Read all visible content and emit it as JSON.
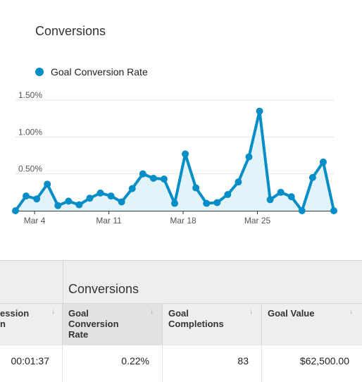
{
  "chart_title": "Conversions",
  "legend": {
    "label": "Goal Conversion Rate",
    "color": "#058dc7"
  },
  "chart_data": {
    "type": "area",
    "title": "Conversions",
    "series": [
      {
        "name": "Goal Conversion Rate",
        "color": "#058dc7",
        "values": [
          0.0,
          0.2,
          0.16,
          0.36,
          0.07,
          0.13,
          0.08,
          0.17,
          0.24,
          0.2,
          0.12,
          0.3,
          0.5,
          0.44,
          0.43,
          0.1,
          0.77,
          0.31,
          0.1,
          0.11,
          0.22,
          0.39,
          0.73,
          1.35,
          0.15,
          0.25,
          0.19,
          0.0,
          0.45,
          0.66,
          0.0
        ]
      }
    ],
    "x_tick_labels": [
      {
        "index": 1.8,
        "label": "Mar 4"
      },
      {
        "index": 8.8,
        "label": "Mar 11"
      },
      {
        "index": 15.8,
        "label": "Mar 18"
      },
      {
        "index": 22.8,
        "label": "Mar 25"
      }
    ],
    "y_ticks": [
      {
        "value": 0.5,
        "label": "0.50%"
      },
      {
        "value": 1.0,
        "label": "1.00%"
      },
      {
        "value": 1.5,
        "label": "1.50%"
      }
    ],
    "ylim": [
      0,
      1.5
    ],
    "grid": true,
    "legend_position": "top-left"
  },
  "table": {
    "group_label": "Conversions",
    "sort_icon_glyph": "↓",
    "columns": [
      {
        "label_lines": [
          "ession",
          "n"
        ],
        "selected": false
      },
      {
        "label_lines": [
          "Goal",
          "Conversion",
          "Rate"
        ],
        "selected": true
      },
      {
        "label_lines": [
          "Goal",
          "Completions"
        ],
        "selected": false
      },
      {
        "label_lines": [
          "Goal Value"
        ],
        "selected": false
      }
    ],
    "row": [
      "00:01:37",
      "0.22%",
      "83",
      "$62,500.00"
    ]
  }
}
